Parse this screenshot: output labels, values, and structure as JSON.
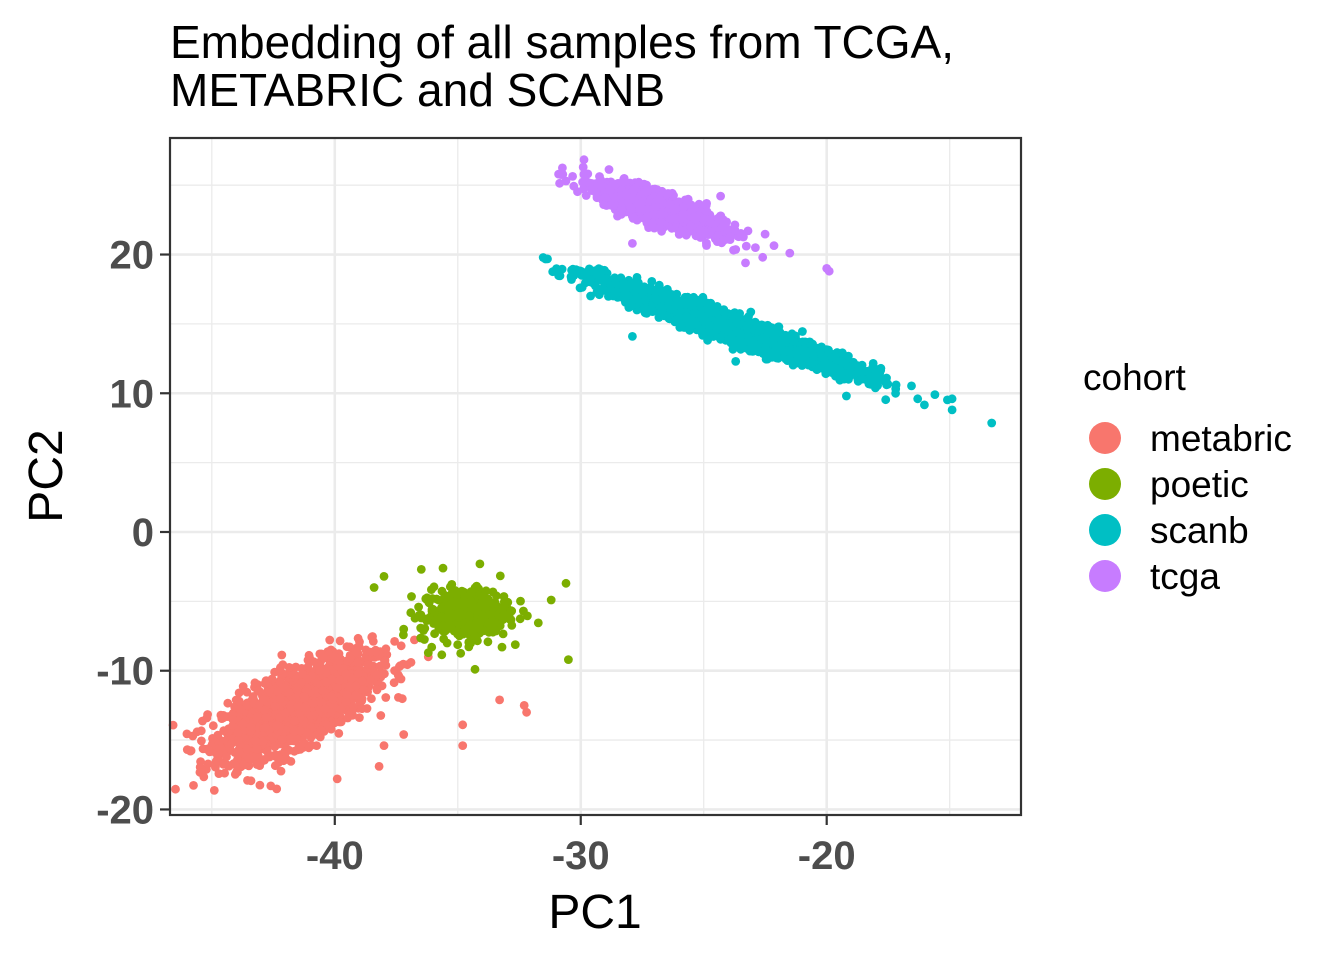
{
  "chart_data": {
    "type": "scatter",
    "title": "Embedding of all samples from TCGA,\nMETABRIC and SCANB",
    "xlabel": "PC1",
    "ylabel": "PC2",
    "xlim": [
      -46.7,
      -12.1
    ],
    "ylim": [
      -20.4,
      28.4
    ],
    "x_ticks": [
      -40,
      -30,
      -20
    ],
    "y_ticks": [
      20,
      10,
      0,
      -10,
      -20
    ],
    "grid": true,
    "legend": {
      "title": "cohort",
      "position": "right"
    },
    "series": [
      {
        "name": "metabric",
        "color": "#F8766D",
        "n_points": 1900,
        "cluster": {
          "center": [
            -41.5,
            -12.6
          ],
          "spread": [
            1.5,
            1.3
          ],
          "trend": 0.8
        },
        "outliers": [
          [
            -38.2,
            -16.9
          ],
          [
            -39.9,
            -17.8
          ],
          [
            -42.6,
            -18.3
          ],
          [
            -34.8,
            -13.9
          ],
          [
            -34.8,
            -15.4
          ],
          [
            -32.3,
            -12.5
          ],
          [
            -32.2,
            -13.0
          ],
          [
            -33.3,
            -12.1
          ],
          [
            -36.9,
            -9.4
          ],
          [
            -36.2,
            -9.0
          ],
          [
            -37.3,
            -8.2
          ],
          [
            -45.6,
            -14.4
          ],
          [
            -45.2,
            -13.4
          ],
          [
            -37.2,
            -14.6
          ],
          [
            -38.0,
            -15.4
          ]
        ]
      },
      {
        "name": "poetic",
        "color": "#7CAE00",
        "n_points": 380,
        "cluster": {
          "center": [
            -34.7,
            -5.9
          ],
          "spread": [
            0.9,
            0.95
          ],
          "trend": 0.1
        },
        "outliers": [
          [
            -30.5,
            -9.2
          ],
          [
            -30.6,
            -3.7
          ],
          [
            -38.0,
            -3.2
          ],
          [
            -38.4,
            -4.0
          ],
          [
            -35.6,
            -2.6
          ],
          [
            -34.1,
            -2.3
          ],
          [
            -31.2,
            -4.9
          ],
          [
            -34.3,
            -9.9
          ],
          [
            -33.2,
            -8.3
          ],
          [
            -36.2,
            -8.7
          ],
          [
            -37.2,
            -7.0
          ]
        ]
      },
      {
        "name": "scanb",
        "color": "#00BFC4",
        "n_points": 2600,
        "cluster": {
          "center": [
            -24.0,
            14.8
          ],
          "spread": [
            2.5,
            0.45
          ],
          "trend": -0.61
        },
        "outliers": [
          [
            -14.9,
            9.6
          ],
          [
            -14.9,
            8.8
          ],
          [
            -15.6,
            9.9
          ],
          [
            -16.3,
            9.6
          ],
          [
            -17.2,
            10.0
          ],
          [
            -19.2,
            9.8
          ],
          [
            -23.7,
            12.3
          ],
          [
            -27.9,
            14.1
          ],
          [
            -29.5,
            18.6
          ],
          [
            -29.6,
            18.2
          ],
          [
            -20.4,
            11.7
          ],
          [
            -21.0,
            12.0
          ]
        ]
      },
      {
        "name": "tcga",
        "color": "#C77CFF",
        "n_points": 1100,
        "cluster": {
          "center": [
            -26.8,
            23.3
          ],
          "spread": [
            1.3,
            0.55
          ],
          "trend": -0.58
        },
        "outliers": [
          [
            -19.9,
            18.8
          ],
          [
            -20.0,
            19.0
          ],
          [
            -21.5,
            20.1
          ],
          [
            -22.9,
            20.5
          ],
          [
            -22.6,
            19.8
          ],
          [
            -23.3,
            19.4
          ],
          [
            -30.9,
            25.8
          ],
          [
            -30.6,
            25.3
          ],
          [
            -29.9,
            26.3
          ],
          [
            -24.2,
            21.0
          ],
          [
            -25.1,
            21.5
          ],
          [
            -27.9,
            20.8
          ]
        ]
      }
    ]
  }
}
